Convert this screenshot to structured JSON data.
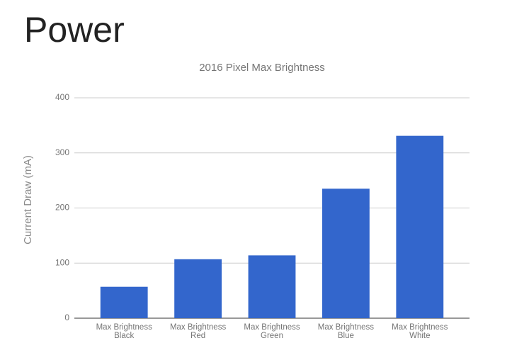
{
  "slide_title": "Power",
  "chart_data": {
    "type": "bar",
    "title": "2016 Pixel Max Brightness",
    "y_label": "Current Draw (mA)",
    "categories": [
      "Max Brightness\nBlack",
      "Max Brightness\nRed",
      "Max Brightness\nGreen",
      "Max Brightness\nBlue",
      "Max Brightness\nWhite"
    ],
    "values": [
      57,
      107,
      114,
      235,
      331
    ],
    "color": "#3366cc",
    "ylim": [
      0,
      400
    ],
    "yticks": [
      0,
      100,
      200,
      300,
      400
    ],
    "grid": true
  }
}
